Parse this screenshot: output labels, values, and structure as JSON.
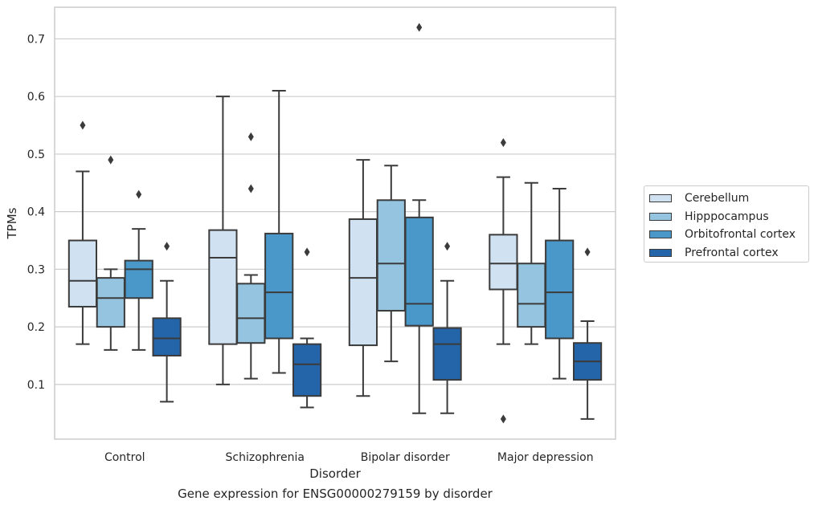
{
  "chart_data": {
    "type": "box",
    "xlabel": "Disorder",
    "ylabel": "TPMs",
    "caption": "Gene expression for ENSG00000279159 by disorder",
    "categories": [
      "Control",
      "Schizophrenia",
      "Bipolar disorder",
      "Major depression"
    ],
    "ylim": [
      0.005,
      0.755
    ],
    "yticks": [
      0.1,
      0.2,
      0.3,
      0.4,
      0.5,
      0.6,
      0.7
    ],
    "grid": true,
    "legend_placement": "right, outside plot",
    "series": [
      {
        "name": "Cerebellum",
        "color": "#d0e1f2",
        "boxes": [
          {
            "whislo": 0.17,
            "q1": 0.235,
            "median": 0.28,
            "q3": 0.35,
            "whishi": 0.47,
            "fliers": [
              0.55
            ]
          },
          {
            "whislo": 0.1,
            "q1": 0.17,
            "median": 0.32,
            "q3": 0.368,
            "whishi": 0.6,
            "fliers": []
          },
          {
            "whislo": 0.08,
            "q1": 0.168,
            "median": 0.285,
            "q3": 0.387,
            "whishi": 0.49,
            "fliers": []
          },
          {
            "whislo": 0.17,
            "q1": 0.265,
            "median": 0.31,
            "q3": 0.36,
            "whishi": 0.46,
            "fliers": [
              0.52,
              0.04
            ]
          }
        ]
      },
      {
        "name": "Hipppocampus",
        "color": "#94c4df",
        "boxes": [
          {
            "whislo": 0.16,
            "q1": 0.2,
            "median": 0.25,
            "q3": 0.285,
            "whishi": 0.3,
            "fliers": [
              0.49
            ]
          },
          {
            "whislo": 0.11,
            "q1": 0.172,
            "median": 0.215,
            "q3": 0.275,
            "whishi": 0.29,
            "fliers": [
              0.53,
              0.44
            ]
          },
          {
            "whislo": 0.14,
            "q1": 0.228,
            "median": 0.31,
            "q3": 0.42,
            "whishi": 0.48,
            "fliers": []
          },
          {
            "whislo": 0.17,
            "q1": 0.2,
            "median": 0.24,
            "q3": 0.31,
            "whishi": 0.45,
            "fliers": []
          }
        ]
      },
      {
        "name": "Orbitofrontal cortex",
        "color": "#4a98c9",
        "boxes": [
          {
            "whislo": 0.16,
            "q1": 0.25,
            "median": 0.3,
            "q3": 0.315,
            "whishi": 0.37,
            "fliers": [
              0.43
            ]
          },
          {
            "whislo": 0.12,
            "q1": 0.18,
            "median": 0.26,
            "q3": 0.362,
            "whishi": 0.61,
            "fliers": []
          },
          {
            "whislo": 0.05,
            "q1": 0.202,
            "median": 0.24,
            "q3": 0.39,
            "whishi": 0.42,
            "fliers": [
              0.72
            ]
          },
          {
            "whislo": 0.11,
            "q1": 0.18,
            "median": 0.26,
            "q3": 0.35,
            "whishi": 0.44,
            "fliers": []
          }
        ]
      },
      {
        "name": "Prefrontal cortex",
        "color": "#2464a8",
        "boxes": [
          {
            "whislo": 0.07,
            "q1": 0.15,
            "median": 0.18,
            "q3": 0.215,
            "whishi": 0.28,
            "fliers": [
              0.34
            ]
          },
          {
            "whislo": 0.06,
            "q1": 0.08,
            "median": 0.135,
            "q3": 0.17,
            "whishi": 0.18,
            "fliers": [
              0.33
            ]
          },
          {
            "whislo": 0.05,
            "q1": 0.108,
            "median": 0.17,
            "q3": 0.198,
            "whishi": 0.28,
            "fliers": [
              0.34
            ]
          },
          {
            "whislo": 0.04,
            "q1": 0.108,
            "median": 0.14,
            "q3": 0.172,
            "whishi": 0.21,
            "fliers": [
              0.33
            ]
          }
        ]
      }
    ]
  }
}
